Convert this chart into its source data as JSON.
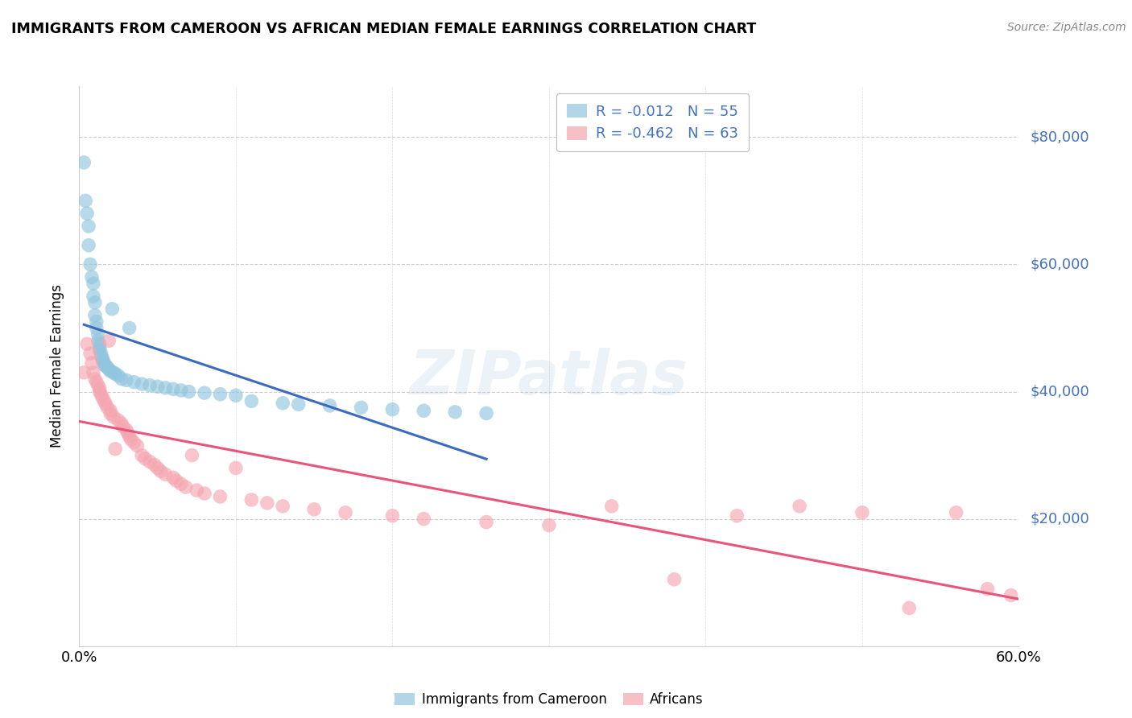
{
  "title": "IMMIGRANTS FROM CAMEROON VS AFRICAN MEDIAN FEMALE EARNINGS CORRELATION CHART",
  "source": "Source: ZipAtlas.com",
  "ylabel": "Median Female Earnings",
  "y_ticks": [
    20000,
    40000,
    60000,
    80000
  ],
  "y_tick_labels": [
    "$20,000",
    "$40,000",
    "$60,000",
    "$80,000"
  ],
  "x_min": 0.0,
  "x_max": 0.6,
  "y_min": 0,
  "y_max": 88000,
  "legend_label1": "Immigrants from Cameroon",
  "legend_label2": "Africans",
  "blue_color": "#92c5de",
  "pink_color": "#f4a6b0",
  "blue_line_color": "#3a6bbf",
  "pink_line_color": "#e8547a",
  "text_color": "#4472c4",
  "r_color": "#e8547a",
  "watermark": "ZIPatlas",
  "blue_scatter_x": [
    0.003,
    0.004,
    0.005,
    0.006,
    0.006,
    0.007,
    0.008,
    0.009,
    0.009,
    0.01,
    0.01,
    0.011,
    0.011,
    0.012,
    0.012,
    0.013,
    0.013,
    0.013,
    0.014,
    0.014,
    0.015,
    0.015,
    0.016,
    0.016,
    0.017,
    0.018,
    0.019,
    0.02,
    0.021,
    0.022,
    0.023,
    0.025,
    0.027,
    0.03,
    0.032,
    0.035,
    0.04,
    0.045,
    0.05,
    0.055,
    0.06,
    0.065,
    0.07,
    0.08,
    0.09,
    0.1,
    0.11,
    0.13,
    0.14,
    0.16,
    0.18,
    0.2,
    0.22,
    0.24,
    0.26
  ],
  "blue_scatter_y": [
    76000,
    70000,
    68000,
    66000,
    63000,
    60000,
    58000,
    57000,
    55000,
    54000,
    52000,
    51000,
    50000,
    49000,
    48000,
    47500,
    47000,
    46500,
    46000,
    45500,
    45200,
    44800,
    44500,
    44200,
    44000,
    43800,
    43500,
    43200,
    53000,
    43000,
    42800,
    42500,
    42000,
    41800,
    50000,
    41500,
    41200,
    41000,
    40800,
    40600,
    40400,
    40200,
    40000,
    39800,
    39600,
    39400,
    38500,
    38200,
    38000,
    37800,
    37500,
    37200,
    37000,
    36800,
    36600
  ],
  "pink_scatter_x": [
    0.003,
    0.005,
    0.007,
    0.008,
    0.009,
    0.01,
    0.011,
    0.012,
    0.013,
    0.013,
    0.014,
    0.015,
    0.016,
    0.017,
    0.018,
    0.019,
    0.02,
    0.02,
    0.022,
    0.023,
    0.025,
    0.027,
    0.028,
    0.03,
    0.031,
    0.032,
    0.033,
    0.035,
    0.037,
    0.04,
    0.042,
    0.045,
    0.048,
    0.05,
    0.052,
    0.055,
    0.06,
    0.062,
    0.065,
    0.068,
    0.072,
    0.075,
    0.08,
    0.09,
    0.1,
    0.11,
    0.12,
    0.13,
    0.15,
    0.17,
    0.2,
    0.22,
    0.26,
    0.3,
    0.34,
    0.38,
    0.42,
    0.46,
    0.5,
    0.53,
    0.56,
    0.58,
    0.595
  ],
  "pink_scatter_y": [
    43000,
    47500,
    46000,
    44500,
    43000,
    42000,
    41500,
    41000,
    40500,
    40000,
    39500,
    39000,
    38500,
    38000,
    37500,
    48000,
    37000,
    36500,
    36000,
    31000,
    35500,
    35000,
    34500,
    34000,
    33500,
    33000,
    32500,
    32000,
    31500,
    30000,
    29500,
    29000,
    28500,
    28000,
    27500,
    27000,
    26500,
    26000,
    25500,
    25000,
    30000,
    24500,
    24000,
    23500,
    28000,
    23000,
    22500,
    22000,
    21500,
    21000,
    20500,
    20000,
    19500,
    19000,
    22000,
    10500,
    20500,
    22000,
    21000,
    6000,
    21000,
    9000,
    8000
  ]
}
